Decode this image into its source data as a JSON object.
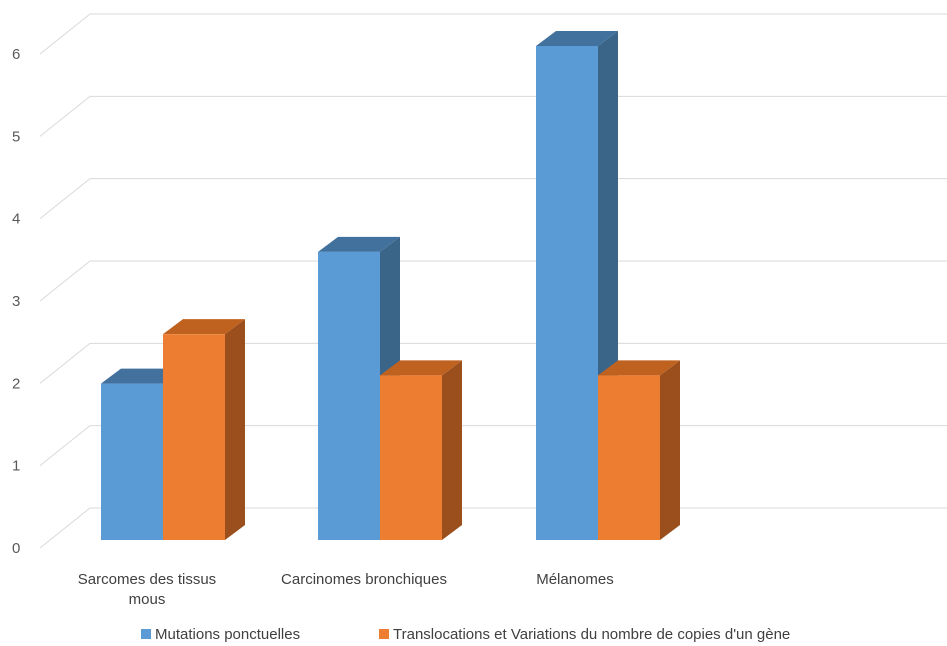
{
  "chart_data": {
    "type": "bar",
    "subtype": "3d-clustered-column",
    "categories": [
      [
        "Sarcomes des tissus",
        "mous"
      ],
      [
        "Carcinomes bronchiques"
      ],
      [
        "Mélanomes"
      ]
    ],
    "series": [
      {
        "name": "Mutations ponctuelles",
        "color": "#5b9bd5",
        "side_color": "#3a6589",
        "top_color": "#41719c",
        "values": [
          1.9,
          3.5,
          6
        ]
      },
      {
        "name": "Translocations et Variations du nombre de copies d'un gène",
        "color": "#ed7d31",
        "side_color": "#9a4f1c",
        "top_color": "#c0621f",
        "values": [
          2.5,
          2,
          2
        ]
      }
    ],
    "ylim": [
      0,
      6
    ],
    "yticks": [
      0,
      1,
      2,
      3,
      4,
      5,
      6
    ],
    "grid": true,
    "legend": "bottom"
  }
}
